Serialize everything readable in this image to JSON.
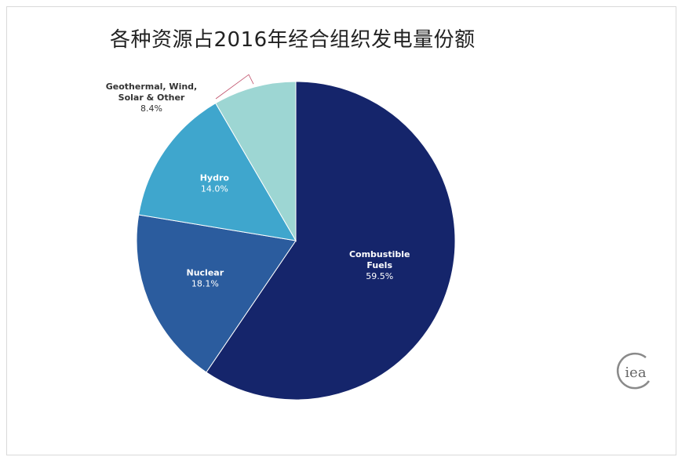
{
  "chart_data": {
    "type": "pie",
    "title": "各种资源占2016年经合组织发电量份额",
    "start_angle_deg": 0,
    "direction": "clockwise",
    "slices": [
      {
        "name": "Combustible Fuels",
        "name_lines": [
          "Combustible",
          "Fuels"
        ],
        "value": 59.5,
        "value_label": "59.5%",
        "color": "#15256b",
        "label_color": "#ffffff"
      },
      {
        "name": "Nuclear",
        "name_lines": [
          "Nuclear"
        ],
        "value": 18.1,
        "value_label": "18.1%",
        "color": "#2b5c9e",
        "label_color": "#ffffff"
      },
      {
        "name": "Hydro",
        "name_lines": [
          "Hydro"
        ],
        "value": 14.0,
        "value_label": "14.0%",
        "color": "#3fa6cd",
        "label_color": "#ffffff"
      },
      {
        "name": "Geothermal, Wind, Solar & Other",
        "name_lines": [
          "Geothermal, Wind,",
          "Solar & Other"
        ],
        "value": 8.4,
        "value_label": "8.4%",
        "color": "#9dd6d3",
        "label_color": "#333333",
        "label_outside": true
      }
    ]
  },
  "logo": {
    "text": "iea",
    "color": "#8a8a8a"
  }
}
